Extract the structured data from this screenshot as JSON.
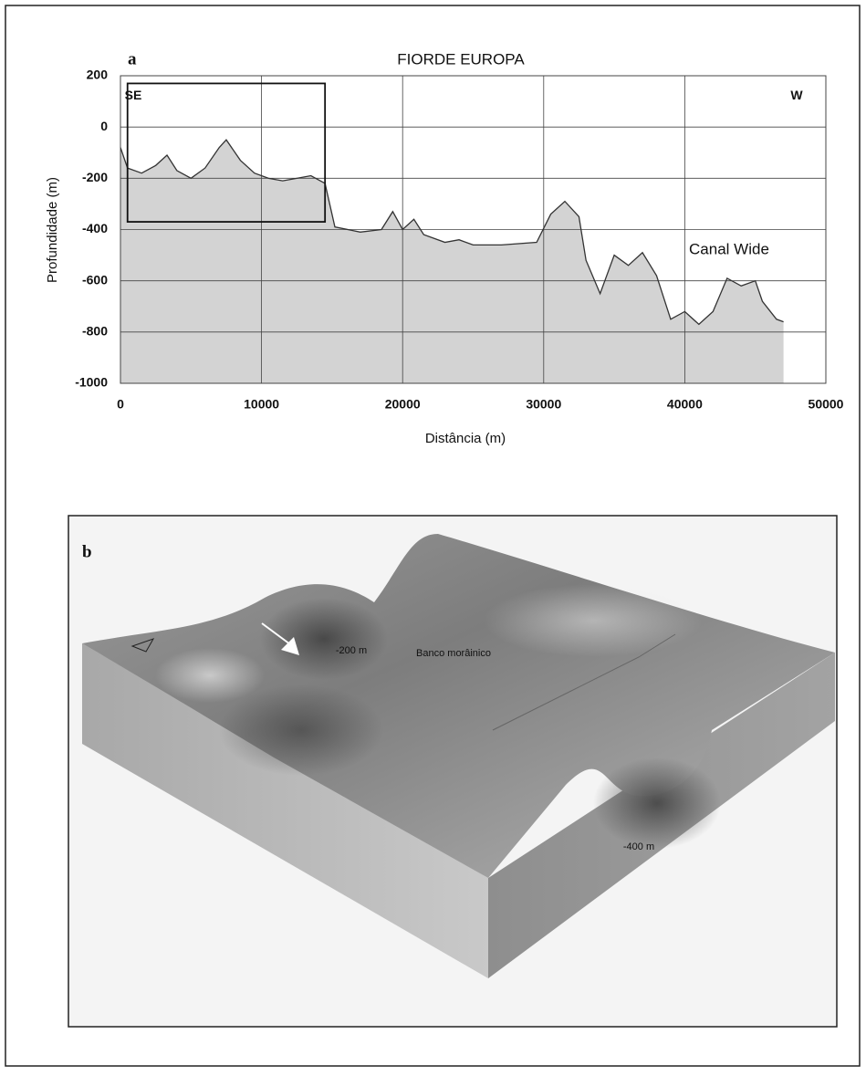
{
  "chart_data": {
    "type": "area",
    "panel_label": "a",
    "title": "FIORDE EUROPA",
    "x_label": "Distância (m)",
    "y_label": "Profundidade (m)",
    "x": [
      0,
      500,
      1500,
      2500,
      3300,
      4000,
      5000,
      6000,
      7000,
      7500,
      8500,
      9500,
      10500,
      11500,
      12500,
      13500,
      14500,
      15200,
      17000,
      18500,
      19300,
      20000,
      20800,
      21500,
      23000,
      24000,
      25000,
      27000,
      29500,
      30500,
      31500,
      32500,
      33000,
      34000,
      35000,
      36000,
      37000,
      38000,
      39000,
      40000,
      41000,
      42000,
      43000,
      44000,
      45000,
      45500,
      46500,
      47000
    ],
    "values": [
      -80,
      -160,
      -180,
      -150,
      -110,
      -170,
      -200,
      -160,
      -80,
      -50,
      -130,
      -180,
      -200,
      -210,
      -200,
      -190,
      -220,
      -390,
      -410,
      -400,
      -330,
      -400,
      -360,
      -420,
      -450,
      -440,
      -460,
      -460,
      -450,
      -340,
      -290,
      -350,
      -520,
      -650,
      -500,
      -540,
      -490,
      -580,
      -750,
      -720,
      -770,
      -720,
      -590,
      -620,
      -600,
      -680,
      -750,
      -760
    ],
    "color": "#d3d3d3",
    "line_color": "#333333",
    "xlim": [
      0,
      50000
    ],
    "xticks": [
      0,
      10000,
      20000,
      30000,
      40000,
      50000
    ],
    "ylim": [
      -1000,
      200
    ],
    "yticks": [
      200,
      0,
      -200,
      -400,
      -600,
      -800,
      -1000
    ],
    "grid": true,
    "annotations": [
      {
        "text": "SE",
        "x": 300,
        "y": 120
      },
      {
        "text": "W",
        "x": 47500,
        "y": 120
      },
      {
        "text": "Canal Wide",
        "x": 40300,
        "y": -480
      }
    ],
    "highlight_box": {
      "x": [
        500,
        14500
      ],
      "y": [
        -370,
        170
      ]
    }
  },
  "panel_b": {
    "label": "b",
    "annotations": [
      "-200 m",
      "Banco morâinico",
      "-400 m"
    ]
  }
}
